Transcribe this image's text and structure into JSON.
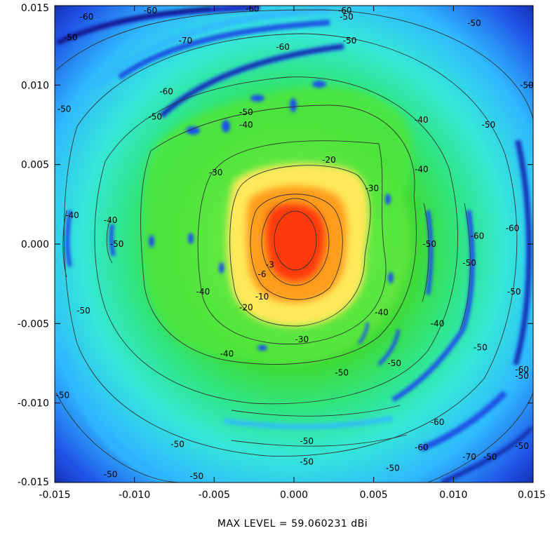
{
  "chart_data": {
    "type": "heatmap",
    "title": "",
    "xlabel": "",
    "ylabel": "",
    "xlim": [
      -0.015,
      0.015
    ],
    "ylim": [
      -0.015,
      0.015
    ],
    "x_ticks": [
      -0.015,
      -0.01,
      -0.005,
      0.0,
      0.005,
      0.01,
      0.015
    ],
    "y_ticks": [
      -0.015,
      -0.01,
      -0.005,
      0.0,
      0.005,
      0.01,
      0.015
    ],
    "x_tick_labels": [
      "-0.015",
      "-0.010",
      "-0.005",
      "0.000",
      "0.005",
      "0.010",
      "0.015"
    ],
    "y_tick_labels": [
      "-0.015",
      "-0.010",
      "-0.005",
      "0.000",
      "0.005",
      "0.010",
      "0.015"
    ],
    "grid": false,
    "colormap": [
      "#ff2a00",
      "#ff8c00",
      "#ffd700",
      "#fff97a",
      "#9bf34a",
      "#3ddb37",
      "#2fe585",
      "#35e8d8",
      "#2fb8ff",
      "#1f52e6",
      "#0c0c7a"
    ],
    "peak": {
      "x": 0.0,
      "y": 0.0
    },
    "contour_levels": [
      -3,
      -6,
      -10,
      -20,
      -30,
      -40,
      -50,
      -60,
      -70
    ],
    "contour_labels": [
      {
        "text": "-3",
        "x": -0.0015,
        "y": -0.0013
      },
      {
        "text": "-6",
        "x": -0.002,
        "y": -0.0019
      },
      {
        "text": "-10",
        "x": -0.002,
        "y": -0.0033
      },
      {
        "text": "-20",
        "x": -0.003,
        "y": -0.004
      },
      {
        "text": "-20",
        "x": 0.0022,
        "y": 0.0053
      },
      {
        "text": "-30",
        "x": 0.0005,
        "y": -0.006
      },
      {
        "text": "-30",
        "x": -0.0049,
        "y": 0.0045
      },
      {
        "text": "-30",
        "x": 0.0049,
        "y": 0.0035
      },
      {
        "text": "-40",
        "x": -0.0115,
        "y": 0.0015
      },
      {
        "text": "-40",
        "x": -0.0057,
        "y": -0.003
      },
      {
        "text": "-40",
        "x": -0.0042,
        "y": -0.0069
      },
      {
        "text": "-40",
        "x": -0.003,
        "y": 0.0075
      },
      {
        "text": "-40",
        "x": 0.008,
        "y": 0.0078
      },
      {
        "text": "-40",
        "x": 0.008,
        "y": 0.0047
      },
      {
        "text": "-40",
        "x": 0.0055,
        "y": -0.0043
      },
      {
        "text": "-40",
        "x": 0.009,
        "y": -0.005
      },
      {
        "text": "-40",
        "x": -0.0139,
        "y": 0.0018
      },
      {
        "text": "-50",
        "x": -0.014,
        "y": 0.013
      },
      {
        "text": "-50",
        "x": -0.0144,
        "y": 0.0085
      },
      {
        "text": "-50",
        "x": 0.0033,
        "y": 0.0143
      },
      {
        "text": "-50",
        "x": 0.0035,
        "y": 0.0128
      },
      {
        "text": "-50",
        "x": -0.0087,
        "y": 0.008
      },
      {
        "text": "-50",
        "x": -0.003,
        "y": 0.0083
      },
      {
        "text": "-50",
        "x": 0.0113,
        "y": 0.0139
      },
      {
        "text": "-50",
        "x": 0.0122,
        "y": 0.0075
      },
      {
        "text": "-50",
        "x": 0.0146,
        "y": 0.01
      },
      {
        "text": "-50",
        "x": -0.0132,
        "y": -0.0042
      },
      {
        "text": "-50",
        "x": -0.0111,
        "y": 0.0
      },
      {
        "text": "-50",
        "x": 0.0085,
        "y": 0.0
      },
      {
        "text": "-50",
        "x": 0.011,
        "y": -0.0012
      },
      {
        "text": "-50",
        "x": 0.0138,
        "y": -0.003
      },
      {
        "text": "-50",
        "x": 0.0117,
        "y": -0.0065
      },
      {
        "text": "-50",
        "x": 0.0063,
        "y": -0.0075
      },
      {
        "text": "-50",
        "x": 0.003,
        "y": -0.0081
      },
      {
        "text": "-50",
        "x": -0.0145,
        "y": -0.0095
      },
      {
        "text": "-50",
        "x": -0.0073,
        "y": -0.0126
      },
      {
        "text": "-50",
        "x": 0.0008,
        "y": -0.0124
      },
      {
        "text": "-50",
        "x": 0.0008,
        "y": -0.0137
      },
      {
        "text": "-50",
        "x": -0.0115,
        "y": -0.0145
      },
      {
        "text": "-50",
        "x": -0.0061,
        "y": -0.0146
      },
      {
        "text": "-50",
        "x": 0.0062,
        "y": -0.0141
      },
      {
        "text": "-50",
        "x": 0.0123,
        "y": -0.0134
      },
      {
        "text": "-50",
        "x": 0.0143,
        "y": -0.0127
      },
      {
        "text": "-50",
        "x": 0.0143,
        "y": -0.0083
      },
      {
        "text": "-60",
        "x": -0.013,
        "y": 0.0143
      },
      {
        "text": "-60",
        "x": -0.009,
        "y": 0.0147
      },
      {
        "text": "-60",
        "x": -0.0026,
        "y": 0.0148
      },
      {
        "text": "-60",
        "x": 0.0032,
        "y": 0.0147
      },
      {
        "text": "-60",
        "x": -0.0007,
        "y": 0.0124
      },
      {
        "text": "-60",
        "x": -0.008,
        "y": 0.0096
      },
      {
        "text": "-60",
        "x": 0.009,
        "y": -0.0112
      },
      {
        "text": "-60",
        "x": 0.008,
        "y": -0.0128
      },
      {
        "text": "-60",
        "x": 0.0143,
        "y": -0.0079
      },
      {
        "text": "-60",
        "x": 0.0115,
        "y": 0.0005
      },
      {
        "text": "-60",
        "x": 0.0137,
        "y": 0.001
      },
      {
        "text": "-70",
        "x": -0.0068,
        "y": 0.0128
      },
      {
        "text": "-70",
        "x": 0.011,
        "y": -0.0134
      }
    ]
  },
  "footer": {
    "max_level_text": "MAX LEVEL = 59.060231 dBi"
  }
}
